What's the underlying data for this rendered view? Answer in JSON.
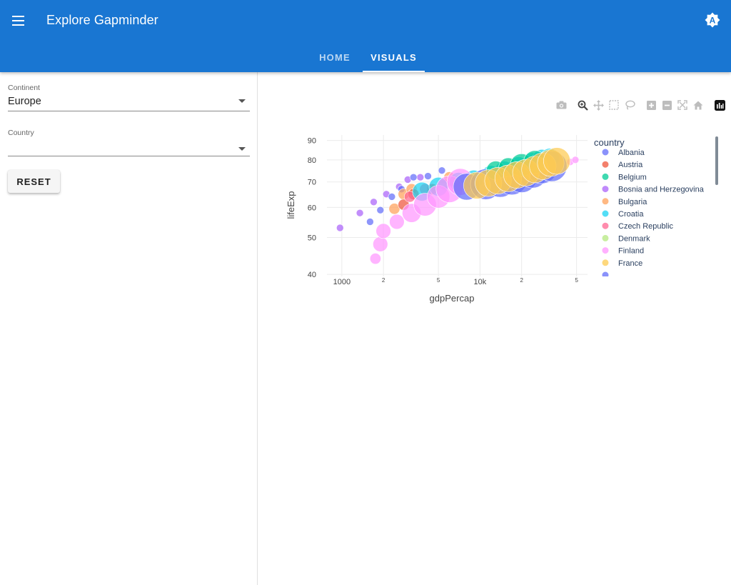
{
  "app": {
    "title": "Explore Gapminder"
  },
  "tabs": [
    {
      "label": "HOME",
      "active": false
    },
    {
      "label": "VISUALS",
      "active": true
    }
  ],
  "filters": {
    "continent": {
      "label": "Continent",
      "value": "Europe"
    },
    "country": {
      "label": "Country",
      "value": ""
    },
    "reset_label": "RESET"
  },
  "colors": {
    "appbar": "#1976d2",
    "Albania": "#636efa",
    "Austria": "#EF553B",
    "Belgium": "#00cc96",
    "Bosnia and Herzegovina": "#ab63fa",
    "Bulgaria": "#FFA15A",
    "Croatia": "#19d3f3",
    "Czech Republic": "#FF6692",
    "Denmark": "#B6E880",
    "Finland": "#FF97FF",
    "France": "#FECB52"
  },
  "chart_data": {
    "type": "scatter",
    "title": "",
    "xlabel": "gdpPercap",
    "ylabel": "lifeExp",
    "x_scale": "log",
    "y_scale": "log",
    "xlim": [
      780,
      60000
    ],
    "ylim": [
      39.5,
      93
    ],
    "x_ticks": [
      {
        "value": 1000,
        "label": "1000"
      },
      {
        "value": 2000,
        "label": "2"
      },
      {
        "value": 5000,
        "label": "5"
      },
      {
        "value": 10000,
        "label": "10k"
      },
      {
        "value": 20000,
        "label": "2"
      },
      {
        "value": 50000,
        "label": "5"
      }
    ],
    "y_ticks": [
      {
        "value": 40,
        "label": "40"
      },
      {
        "value": 50,
        "label": "50"
      },
      {
        "value": 60,
        "label": "60"
      },
      {
        "value": 70,
        "label": "70"
      },
      {
        "value": 80,
        "label": "80"
      },
      {
        "value": 90,
        "label": "90"
      }
    ],
    "legend_title": "country",
    "legend_placement": "right",
    "legend": [
      "Albania",
      "Austria",
      "Belgium",
      "Bosnia and Herzegovina",
      "Bulgaria",
      "Croatia",
      "Czech Republic",
      "Denmark",
      "Finland",
      "France"
    ],
    "series": [
      {
        "name": "Bosnia and Herzegovina",
        "points": [
          [
            970,
            53,
            1
          ],
          [
            1350,
            58,
            1
          ],
          [
            1700,
            62,
            1
          ],
          [
            2100,
            65,
            1
          ],
          [
            2600,
            68,
            1
          ],
          [
            3000,
            71,
            1
          ],
          [
            3700,
            72,
            1
          ]
        ]
      },
      {
        "name": "Albania",
        "points": [
          [
            1600,
            55,
            1
          ],
          [
            1900,
            59,
            1
          ],
          [
            2300,
            64,
            1
          ],
          [
            2700,
            67,
            1
          ],
          [
            3300,
            72,
            1
          ],
          [
            4200,
            72.5,
            1
          ],
          [
            5300,
            75,
            1
          ]
        ]
      },
      {
        "name": "Bulgaria",
        "points": [
          [
            2400,
            59.5,
            2
          ],
          [
            2800,
            65,
            2
          ],
          [
            3200,
            67,
            2
          ],
          [
            6000,
            72,
            2
          ]
        ]
      },
      {
        "name": "Austria",
        "points": [
          [
            2800,
            61,
            2
          ],
          [
            3300,
            65,
            2
          ],
          [
            4500,
            67,
            2
          ],
          [
            6500,
            70,
            2
          ]
        ]
      },
      {
        "name": "Czech Republic",
        "points": [
          [
            3100,
            64,
            2
          ],
          [
            4000,
            67,
            2
          ],
          [
            5500,
            69,
            2
          ]
        ]
      },
      {
        "name": "Croatia",
        "points": [
          [
            3800,
            66,
            4
          ],
          [
            5000,
            68,
            4
          ],
          [
            7000,
            70,
            4
          ],
          [
            9000,
            71,
            4
          ],
          [
            12000,
            73,
            4
          ],
          [
            15000,
            75,
            4
          ],
          [
            19000,
            77,
            4
          ],
          [
            24000,
            79,
            4
          ],
          [
            28000,
            80.5,
            4
          ],
          [
            32000,
            81,
            4
          ]
        ]
      },
      {
        "name": "Finland",
        "points": [
          [
            1750,
            44,
            2
          ],
          [
            1900,
            48,
            3
          ],
          [
            2000,
            52,
            3
          ],
          [
            2500,
            55,
            3
          ],
          [
            3200,
            58,
            4
          ],
          [
            4000,
            61,
            5
          ],
          [
            5000,
            64,
            5
          ],
          [
            6000,
            67,
            6
          ],
          [
            7200,
            70,
            6
          ],
          [
            45000,
            79,
            1
          ],
          [
            49000,
            80,
            1
          ]
        ]
      },
      {
        "name": "Albania",
        "points": [
          [
            8000,
            68,
            6
          ],
          [
            11000,
            69,
            7
          ],
          [
            14000,
            70,
            7
          ],
          [
            17000,
            71,
            7
          ],
          [
            20000,
            72,
            7
          ],
          [
            24000,
            74,
            7
          ],
          [
            28000,
            76,
            7
          ],
          [
            33000,
            77,
            7
          ]
        ]
      },
      {
        "name": "Belgium",
        "points": [
          [
            13000,
            75,
            4
          ],
          [
            16000,
            76.5,
            4
          ],
          [
            20000,
            77.5,
            5
          ],
          [
            25000,
            79,
            5
          ]
        ]
      },
      {
        "name": "France",
        "points": [
          [
            9500,
            68.5,
            6
          ],
          [
            11500,
            69.5,
            6
          ],
          [
            13500,
            70.5,
            6
          ],
          [
            16000,
            71.5,
            6
          ],
          [
            18500,
            73,
            6
          ],
          [
            21500,
            74,
            6
          ],
          [
            25000,
            75.5,
            6
          ],
          [
            28500,
            77,
            6
          ],
          [
            32500,
            78.5,
            6
          ],
          [
            36000,
            79.5,
            6
          ]
        ]
      }
    ]
  }
}
